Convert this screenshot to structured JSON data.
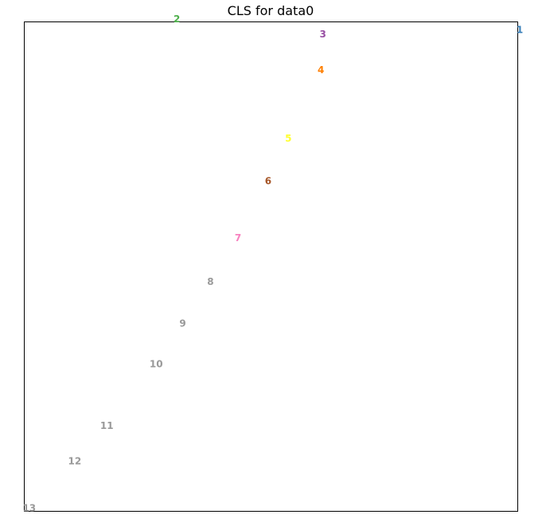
{
  "chart_data": {
    "type": "scatter",
    "title": "CLS for data0",
    "xlabel": "",
    "ylabel": "",
    "xlim": [
      0,
      1
    ],
    "ylim": [
      0,
      1
    ],
    "grid": false,
    "axes_ticks": false,
    "points": [
      {
        "label": "1",
        "x": 1.005,
        "y": 0.983,
        "color": "#377eb8"
      },
      {
        "label": "2",
        "x": 0.31,
        "y": 1.005,
        "color": "#4daf4a"
      },
      {
        "label": "3",
        "x": 0.606,
        "y": 0.974,
        "color": "#984ea3"
      },
      {
        "label": "4",
        "x": 0.602,
        "y": 0.901,
        "color": "#ff7f00"
      },
      {
        "label": "5",
        "x": 0.536,
        "y": 0.761,
        "color": "#ffff33"
      },
      {
        "label": "6",
        "x": 0.495,
        "y": 0.674,
        "color": "#a65628"
      },
      {
        "label": "7",
        "x": 0.434,
        "y": 0.558,
        "color": "#f781bf"
      },
      {
        "label": "8",
        "x": 0.378,
        "y": 0.468,
        "color": "#999999"
      },
      {
        "label": "9",
        "x": 0.322,
        "y": 0.383,
        "color": "#999999"
      },
      {
        "label": "10",
        "x": 0.268,
        "y": 0.3,
        "color": "#999999"
      },
      {
        "label": "11",
        "x": 0.168,
        "y": 0.174,
        "color": "#999999"
      },
      {
        "label": "12",
        "x": 0.103,
        "y": 0.102,
        "color": "#999999"
      },
      {
        "label": "13",
        "x": 0.011,
        "y": 0.006,
        "color": "#999999"
      }
    ]
  }
}
